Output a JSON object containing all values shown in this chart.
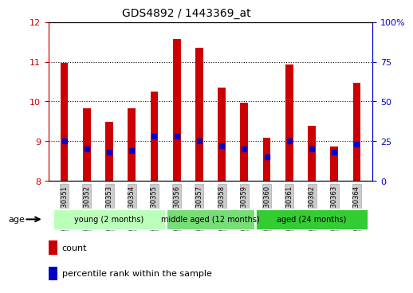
{
  "title": "GDS4892 / 1443369_at",
  "samples": [
    "GSM1230351",
    "GSM1230352",
    "GSM1230353",
    "GSM1230354",
    "GSM1230355",
    "GSM1230356",
    "GSM1230357",
    "GSM1230358",
    "GSM1230359",
    "GSM1230360",
    "GSM1230361",
    "GSM1230362",
    "GSM1230363",
    "GSM1230364"
  ],
  "counts": [
    10.97,
    9.82,
    9.48,
    9.82,
    10.25,
    11.58,
    11.35,
    10.35,
    9.97,
    9.08,
    10.93,
    9.38,
    8.87,
    10.47
  ],
  "percentile_ranks": [
    25,
    20,
    18,
    19,
    28,
    28,
    25,
    22,
    20,
    15,
    25,
    20,
    18,
    23
  ],
  "bar_bottom": 8.0,
  "ylim_left": [
    8,
    12
  ],
  "ylim_right": [
    0,
    100
  ],
  "yticks_left": [
    8,
    9,
    10,
    11,
    12
  ],
  "yticks_right": [
    0,
    25,
    50,
    75,
    100
  ],
  "ytick_labels_right": [
    "0",
    "25",
    "50",
    "75",
    "100%"
  ],
  "bar_color": "#cc0000",
  "percentile_color": "#0000cc",
  "groups": [
    {
      "label": "young (2 months)",
      "start": 0,
      "end": 5,
      "color": "#bbffbb"
    },
    {
      "label": "middle aged (12 months)",
      "start": 5,
      "end": 9,
      "color": "#77dd77"
    },
    {
      "label": "aged (24 months)",
      "start": 9,
      "end": 14,
      "color": "#33cc33"
    }
  ],
  "age_label": "age",
  "legend_count_label": "count",
  "legend_percentile_label": "percentile rank within the sample",
  "bar_width": 0.35,
  "tick_color_left": "#cc0000",
  "tick_color_right": "#0000cc",
  "bg_color": "#ffffff",
  "xticklabel_bg": "#cccccc"
}
